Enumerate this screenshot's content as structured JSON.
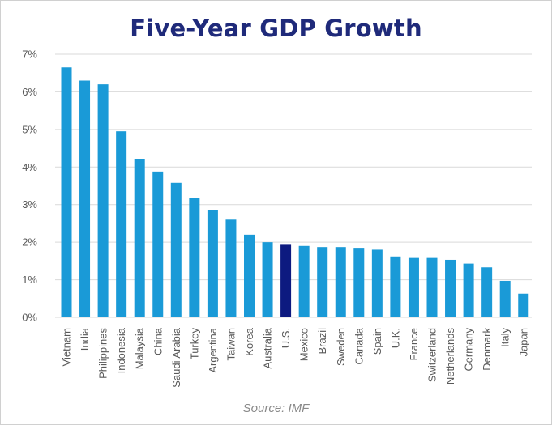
{
  "chart_data": {
    "type": "bar",
    "title": "Five-Year GDP Growth",
    "source": "Source: IMF",
    "xlabel": "",
    "ylabel": "",
    "ylim": [
      0,
      7
    ],
    "yticks": [
      0,
      1,
      2,
      3,
      4,
      5,
      6,
      7
    ],
    "ytick_labels": [
      "0%",
      "1%",
      "2%",
      "3%",
      "4%",
      "5%",
      "6%",
      "7%"
    ],
    "grid": true,
    "legend": "none",
    "categories": [
      "Vietnam",
      "India",
      "Philippines",
      "Indonesia",
      "Malaysia",
      "China",
      "Saudi Arabia",
      "Turkey",
      "Argentina",
      "Taiwan",
      "Korea",
      "Australia",
      "U.S.",
      "Mexico",
      "Brazil",
      "Sweden",
      "Canada",
      "Spain",
      "U.K.",
      "France",
      "Switzerland",
      "Netherlands",
      "Germany",
      "Denmark",
      "Italy",
      "Japan"
    ],
    "values": [
      6.65,
      6.3,
      6.2,
      4.95,
      4.2,
      3.88,
      3.58,
      3.18,
      2.85,
      2.6,
      2.2,
      2.0,
      1.93,
      1.9,
      1.87,
      1.87,
      1.85,
      1.8,
      1.62,
      1.58,
      1.58,
      1.53,
      1.43,
      1.33,
      0.97,
      0.63
    ],
    "colors": {
      "default": "#1a9ad7",
      "highlight": "#0d1a80",
      "grid": "#d9d9d9",
      "title": "#1f2a7a"
    },
    "highlight_category": "U.S."
  }
}
